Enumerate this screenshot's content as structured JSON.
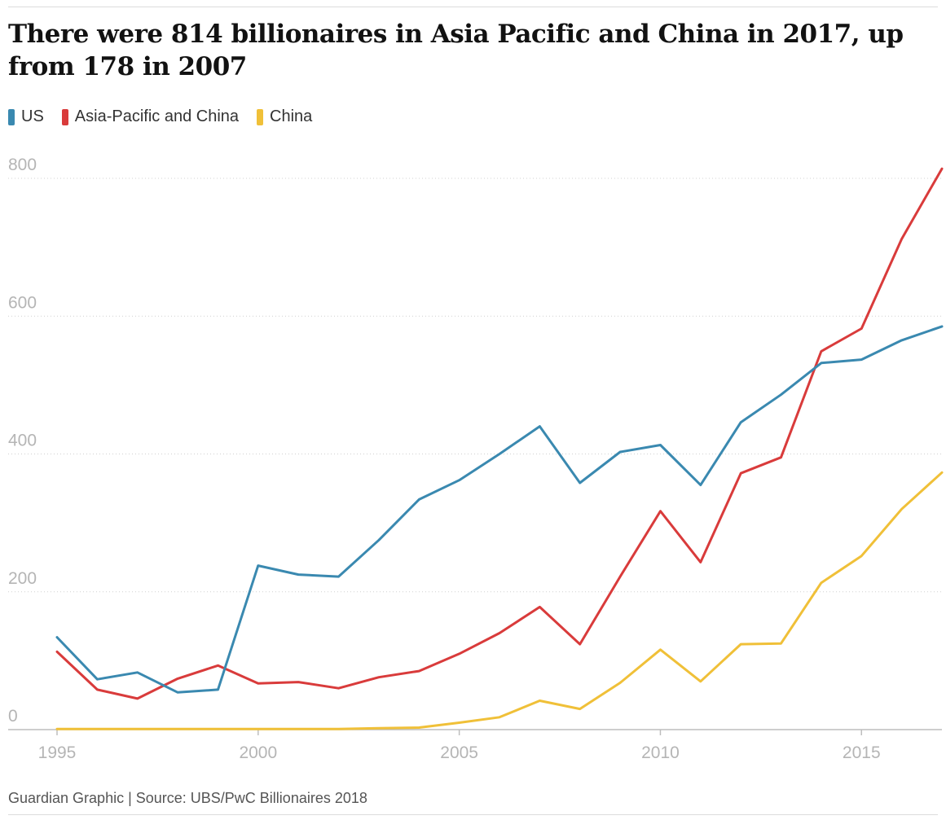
{
  "title": "There were 814 billionaires in Asia Pacific and China in 2017, up from 178 in 2007",
  "source": "Guardian Graphic | Source: UBS/PwC Billionaires 2018",
  "chart_data": {
    "type": "line",
    "title": "There were 814 billionaires in Asia Pacific and China in 2017, up from 178 in 2007",
    "x": [
      1995,
      1996,
      1997,
      1998,
      1999,
      2000,
      2001,
      2002,
      2003,
      2004,
      2005,
      2006,
      2007,
      2008,
      2009,
      2010,
      2011,
      2012,
      2013,
      2014,
      2015,
      2016,
      2017
    ],
    "xlim": [
      1995,
      2017
    ],
    "ylim": [
      0,
      800
    ],
    "xticks": [
      1995,
      2000,
      2005,
      2010,
      2015
    ],
    "yticks": [
      0,
      200,
      400,
      600,
      800
    ],
    "grid": true,
    "legend": "top-left",
    "series": [
      {
        "name": "US",
        "color": "#3a89b0",
        "values": [
          134,
          73,
          83,
          54,
          58,
          238,
          225,
          222,
          275,
          334,
          362,
          400,
          440,
          358,
          403,
          413,
          355,
          446,
          486,
          532,
          537,
          565,
          585
        ]
      },
      {
        "name": "Asia-Pacific and China",
        "color": "#d93b3b",
        "values": [
          113,
          58,
          45,
          74,
          93,
          67,
          69,
          60,
          76,
          85,
          110,
          140,
          178,
          124,
          222,
          317,
          243,
          372,
          395,
          549,
          582,
          712,
          814
        ]
      },
      {
        "name": "China",
        "color": "#f0c038",
        "values": [
          1,
          1,
          1,
          1,
          1,
          1,
          1,
          1,
          2,
          3,
          10,
          18,
          42,
          30,
          68,
          116,
          70,
          124,
          125,
          213,
          252,
          320,
          373
        ]
      }
    ]
  }
}
